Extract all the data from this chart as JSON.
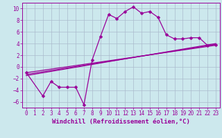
{
  "background_color": "#cce8ed",
  "line_color": "#990099",
  "grid_color": "#aabbcc",
  "xlabel": "Windchill (Refroidissement éolien,°C)",
  "xlim": [
    -0.5,
    23.5
  ],
  "ylim": [
    -7,
    11
  ],
  "xticks": [
    0,
    1,
    2,
    3,
    4,
    5,
    6,
    7,
    8,
    9,
    10,
    11,
    12,
    13,
    14,
    15,
    16,
    17,
    18,
    19,
    20,
    21,
    22,
    23
  ],
  "yticks": [
    -6,
    -4,
    -2,
    0,
    2,
    4,
    6,
    8,
    10
  ],
  "series": [
    {
      "x": [
        0,
        2,
        3,
        4,
        5,
        6,
        7,
        8,
        9,
        10,
        11,
        12,
        13,
        14,
        15,
        16,
        17,
        18,
        19,
        20,
        21,
        22,
        23
      ],
      "y": [
        -1,
        -5,
        -2.5,
        -3.5,
        -3.5,
        -3.5,
        -6.5,
        1.2,
        5.2,
        9.0,
        8.3,
        9.5,
        10.3,
        9.2,
        9.5,
        8.5,
        5.5,
        4.8,
        4.8,
        5.0,
        5.0,
        3.7,
        3.8
      ],
      "marker": true
    },
    {
      "x": [
        0,
        23
      ],
      "y": [
        -1,
        3.7
      ],
      "marker": false
    },
    {
      "x": [
        0,
        23
      ],
      "y": [
        -1.3,
        3.85
      ],
      "marker": false
    },
    {
      "x": [
        0,
        23
      ],
      "y": [
        -1.5,
        4.0
      ],
      "marker": false
    }
  ],
  "markersize": 2.5,
  "linewidth": 0.9,
  "tick_fontsize": 5.5,
  "label_fontsize": 6.5
}
